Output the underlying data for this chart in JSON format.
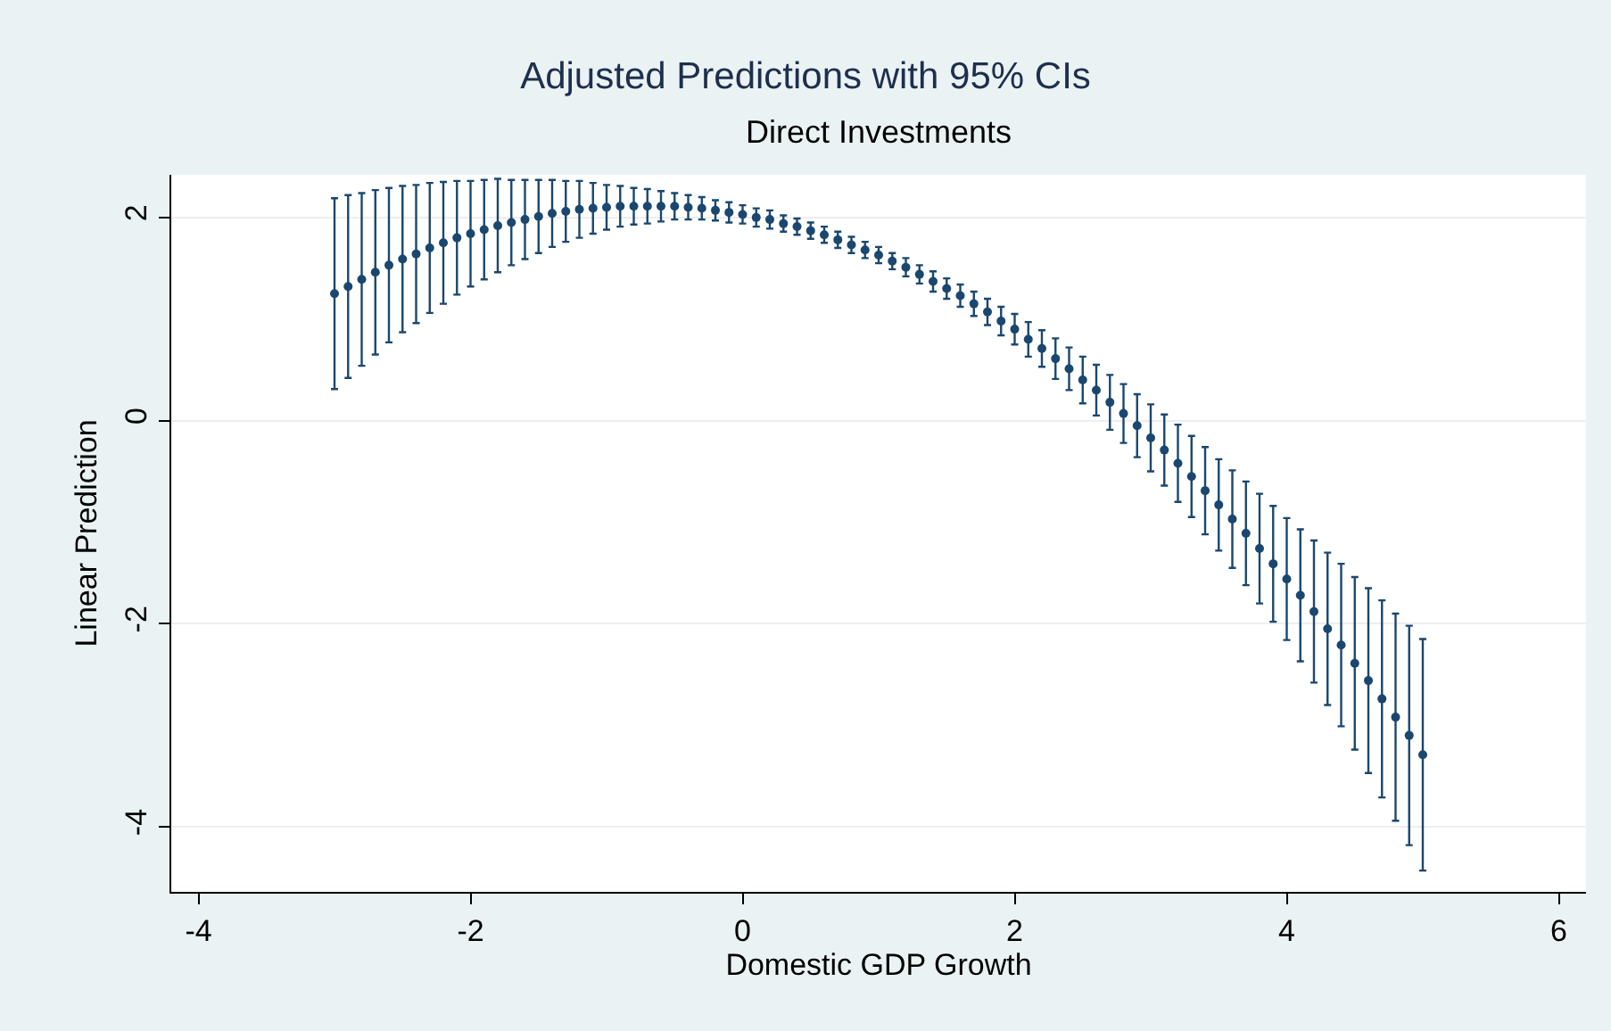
{
  "chart_data": {
    "type": "scatter",
    "title": "Adjusted Predictions with 95% CIs",
    "subtitle": "Direct Investments",
    "xlabel": "Domestic GDP Growth",
    "ylabel": "Linear Prediction",
    "x": [
      -3.0,
      -2.9,
      -2.8,
      -2.7,
      -2.6,
      -2.5,
      -2.4,
      -2.3,
      -2.2,
      -2.1,
      -2.0,
      -1.9,
      -1.8,
      -1.7,
      -1.6,
      -1.5,
      -1.4,
      -1.3,
      -1.2,
      -1.1,
      -1.0,
      -0.9,
      -0.8,
      -0.7,
      -0.6,
      -0.5,
      -0.4,
      -0.3,
      -0.2,
      -0.1,
      0.0,
      0.1,
      0.2,
      0.3,
      0.4,
      0.5,
      0.6,
      0.7,
      0.8,
      0.9,
      1.0,
      1.1,
      1.2,
      1.3,
      1.4,
      1.5,
      1.6,
      1.7,
      1.8,
      1.9,
      2.0,
      2.1,
      2.2,
      2.3,
      2.4,
      2.5,
      2.6,
      2.7,
      2.8,
      2.9,
      3.0,
      3.1,
      3.2,
      3.3,
      3.4,
      3.5,
      3.6,
      3.7,
      3.8,
      3.9,
      4.0,
      4.1,
      4.2,
      4.3,
      4.4,
      4.5,
      4.6,
      4.7,
      4.8,
      4.9,
      5.0
    ],
    "series": [
      {
        "color": "#1a476f",
        "values": [
          1.25,
          1.32,
          1.39,
          1.46,
          1.53,
          1.59,
          1.64,
          1.7,
          1.75,
          1.8,
          1.84,
          1.88,
          1.92,
          1.95,
          1.98,
          2.01,
          2.04,
          2.06,
          2.08,
          2.09,
          2.1,
          2.11,
          2.11,
          2.11,
          2.11,
          2.11,
          2.1,
          2.09,
          2.07,
          2.05,
          2.03,
          2.0,
          1.98,
          1.94,
          1.91,
          1.87,
          1.83,
          1.78,
          1.73,
          1.68,
          1.63,
          1.57,
          1.51,
          1.44,
          1.37,
          1.3,
          1.23,
          1.15,
          1.07,
          0.98,
          0.9,
          0.8,
          0.71,
          0.61,
          0.51,
          0.4,
          0.3,
          0.18,
          0.07,
          -0.05,
          -0.17,
          -0.29,
          -0.42,
          -0.55,
          -0.69,
          -0.83,
          -0.97,
          -1.11,
          -1.26,
          -1.41,
          -1.56,
          -1.72,
          -1.88,
          -2.05,
          -2.21,
          -2.39,
          -2.56,
          -2.74,
          -2.92,
          -3.1,
          -3.29
        ],
        "errors": [
          0.94,
          0.9,
          0.85,
          0.81,
          0.76,
          0.72,
          0.68,
          0.64,
          0.6,
          0.56,
          0.52,
          0.49,
          0.46,
          0.42,
          0.39,
          0.36,
          0.33,
          0.3,
          0.28,
          0.25,
          0.22,
          0.2,
          0.18,
          0.17,
          0.15,
          0.13,
          0.12,
          0.11,
          0.1,
          0.1,
          0.09,
          0.09,
          0.09,
          0.08,
          0.08,
          0.08,
          0.08,
          0.08,
          0.08,
          0.08,
          0.08,
          0.08,
          0.09,
          0.09,
          0.1,
          0.1,
          0.11,
          0.12,
          0.13,
          0.14,
          0.15,
          0.17,
          0.18,
          0.2,
          0.21,
          0.23,
          0.25,
          0.27,
          0.29,
          0.31,
          0.33,
          0.35,
          0.38,
          0.4,
          0.43,
          0.45,
          0.48,
          0.51,
          0.54,
          0.57,
          0.6,
          0.65,
          0.7,
          0.75,
          0.8,
          0.85,
          0.91,
          0.97,
          1.02,
          1.08,
          1.14
        ]
      }
    ],
    "xlim": [
      -4.2,
      6.2
    ],
    "xticks": [
      -4,
      -2,
      0,
      2,
      4,
      6
    ],
    "ylim": [
      -4.64,
      2.42
    ],
    "yticks": [
      -4,
      -2,
      0,
      2
    ],
    "grid": "y",
    "marker": "circle"
  }
}
